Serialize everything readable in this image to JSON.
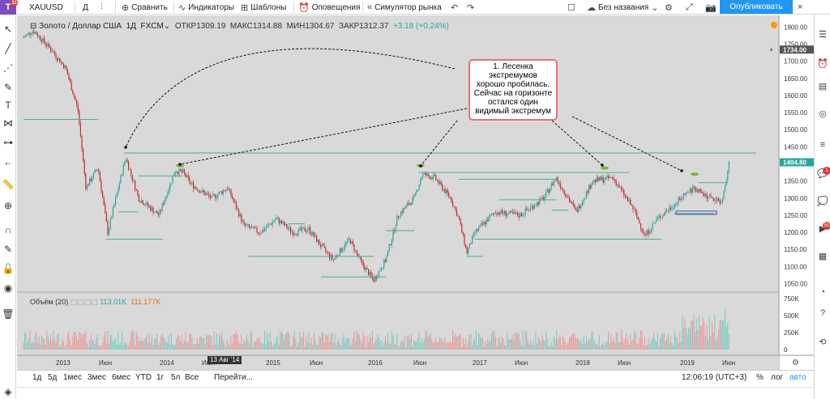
{
  "topbar": {
    "symbol": "XAUUSD",
    "interval": "Д",
    "compare_label": "Сравнить",
    "indicators_label": "Индикаторы",
    "templates_label": "Шаблоны",
    "alerts_label": "Оповещения",
    "replay_label": "Симулятор рынка",
    "layout_name": "Без названия",
    "publish_label": "Опубликовать",
    "logo_badge": "11"
  },
  "legend": {
    "title": "Золото / Доллар США",
    "interval": "1Д",
    "source": "FXCM",
    "open": "ОТКР1309.19",
    "high": "МАКС1314.88",
    "low": "МИН1304.67",
    "close": "ЗАКР1312.37",
    "change": "+3.18 (+0.24%)"
  },
  "volume_legend": {
    "label": "Объём (20)",
    "value1": "113.01K",
    "value2": "111.177K"
  },
  "annotation": {
    "lines": [
      "1. Лесенка",
      "экстремумов",
      "хорошо пробилась.",
      "Сейчас на горизонте",
      "остался один",
      "видимый экстремум"
    ]
  },
  "price_axis": {
    "ticks": [
      "1800.00",
      "1750.00",
      "1700.00",
      "1650.00",
      "1600.00",
      "1550.00",
      "1500.00",
      "1450.00",
      "1400.00",
      "1350.00",
      "1300.00",
      "1250.00",
      "1200.00",
      "1150.00",
      "1100.00",
      "1050.00"
    ],
    "marker_1734": "1734.00",
    "marker_current": "1404.80"
  },
  "volume_axis": {
    "ticks": [
      "750K",
      "500K",
      "250K",
      "0"
    ]
  },
  "time_axis": {
    "ticks": [
      "2013",
      "Июн",
      "2014",
      "Июн",
      "2015",
      "Июн",
      "2016",
      "Июн",
      "2017",
      "Июн",
      "2018",
      "Июн",
      "2019",
      "Июн"
    ],
    "crosshair_date": "13 Авг '14"
  },
  "bottombar": {
    "ranges": [
      "1д",
      "5д",
      "1мес",
      "3мес",
      "6мес",
      "YTD",
      "1г",
      "5л",
      "Все"
    ],
    "goto_label": "Перейти...",
    "time": "12:06:19 (UTC+3)",
    "percent_label": "%",
    "log_label": "лог",
    "auto_label": "авто"
  },
  "right_badges": {
    "badge1": "1",
    "badge2": "50"
  },
  "colors": {
    "up": "#26a69a",
    "down": "#c62828",
    "accent": "#2196f3",
    "background": "#d9d9d9"
  }
}
